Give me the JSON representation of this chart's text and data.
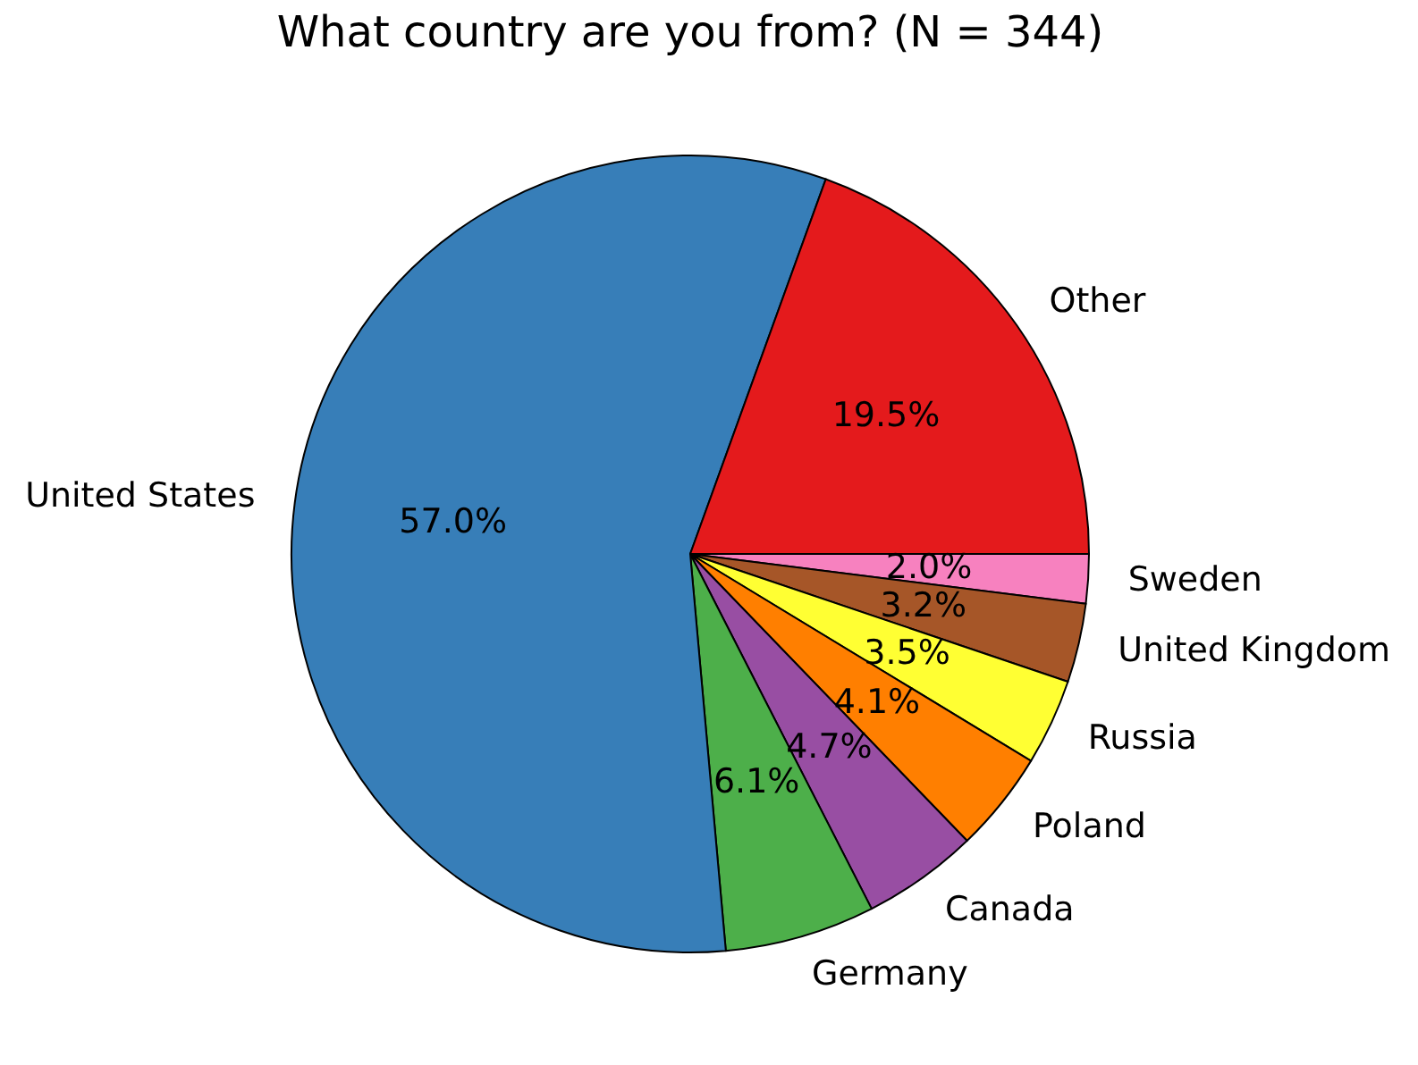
{
  "chart_data": {
    "type": "pie",
    "title": "What country are you from? (N = 344)",
    "categories": [
      "Sweden",
      "United Kingdom",
      "Russia",
      "Poland",
      "Canada",
      "Germany",
      "United States",
      "Other"
    ],
    "values": [
      2.0,
      3.2,
      3.5,
      4.1,
      4.7,
      6.1,
      57.0,
      19.5
    ],
    "colors": [
      "#f781bf",
      "#a65628",
      "#ffff33",
      "#ff7f00",
      "#984ea3",
      "#4daf4a",
      "#377eb8",
      "#e41a1c"
    ],
    "value_labels": [
      "2.0%",
      "3.2%",
      "3.5%",
      "4.1%",
      "4.7%",
      "6.1%",
      "57.0%",
      "19.5%"
    ]
  }
}
